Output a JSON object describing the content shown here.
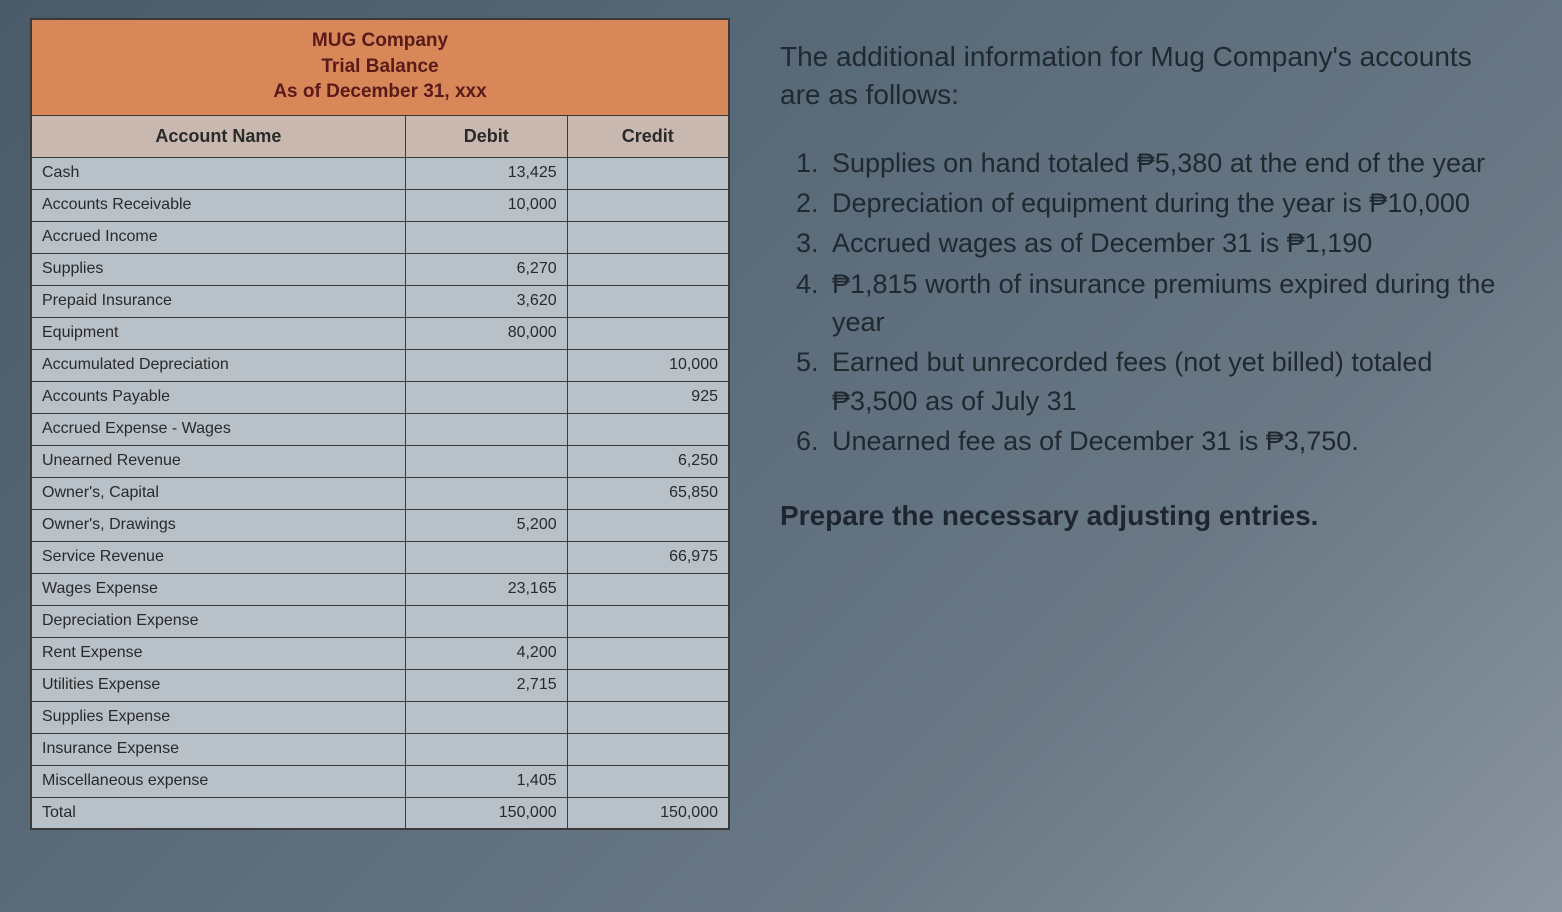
{
  "trial_balance": {
    "company": "MUG Company",
    "report_name": "Trial Balance",
    "as_of": "As of December 31, xxx",
    "columns": [
      "Account Name",
      "Debit",
      "Credit"
    ],
    "rows": [
      {
        "account": "Cash",
        "debit": "13,425",
        "credit": ""
      },
      {
        "account": "Accounts Receivable",
        "debit": "10,000",
        "credit": ""
      },
      {
        "account": "Accrued Income",
        "debit": "",
        "credit": ""
      },
      {
        "account": "Supplies",
        "debit": "6,270",
        "credit": ""
      },
      {
        "account": "Prepaid Insurance",
        "debit": "3,620",
        "credit": ""
      },
      {
        "account": "Equipment",
        "debit": "80,000",
        "credit": ""
      },
      {
        "account": "Accumulated Depreciation",
        "debit": "",
        "credit": "10,000"
      },
      {
        "account": "Accounts Payable",
        "debit": "",
        "credit": "925"
      },
      {
        "account": "Accrued Expense - Wages",
        "debit": "",
        "credit": ""
      },
      {
        "account": "Unearned Revenue",
        "debit": "",
        "credit": "6,250"
      },
      {
        "account": "Owner's, Capital",
        "debit": "",
        "credit": "65,850"
      },
      {
        "account": "Owner's, Drawings",
        "debit": "5,200",
        "credit": ""
      },
      {
        "account": "Service Revenue",
        "debit": "",
        "credit": "66,975"
      },
      {
        "account": "Wages Expense",
        "debit": "23,165",
        "credit": ""
      },
      {
        "account": "Depreciation Expense",
        "debit": "",
        "credit": ""
      },
      {
        "account": "Rent Expense",
        "debit": "4,200",
        "credit": ""
      },
      {
        "account": "Utilities Expense",
        "debit": "2,715",
        "credit": ""
      },
      {
        "account": "Supplies Expense",
        "debit": "",
        "credit": ""
      },
      {
        "account": "Insurance Expense",
        "debit": "",
        "credit": ""
      },
      {
        "account": "Miscellaneous expense",
        "debit": "1,405",
        "credit": ""
      }
    ],
    "total": {
      "account": "Total",
      "debit": "150,000",
      "credit": "150,000"
    },
    "colors": {
      "title_bg": "#d88858",
      "title_text": "#5a1a1a",
      "head_bg": "#c8b8b0",
      "body_bg": "#b8c0c8",
      "border": "#3a3a3a"
    }
  },
  "info": {
    "intro": "The additional information for Mug Company's accounts are as follows:",
    "items": [
      "Supplies on hand totaled ₱5,380 at the end of the year",
      "Depreciation of equipment during the year is ₱10,000",
      "Accrued wages as of December 31 is ₱1,190",
      "₱1,815 worth of insurance premiums expired during the year",
      "Earned but unrecorded fees (not yet billed) totaled ₱3,500 as of July 31",
      "Unearned fee as of December 31 is ₱3,750."
    ],
    "prepare": "Prepare the necessary adjusting entries."
  }
}
